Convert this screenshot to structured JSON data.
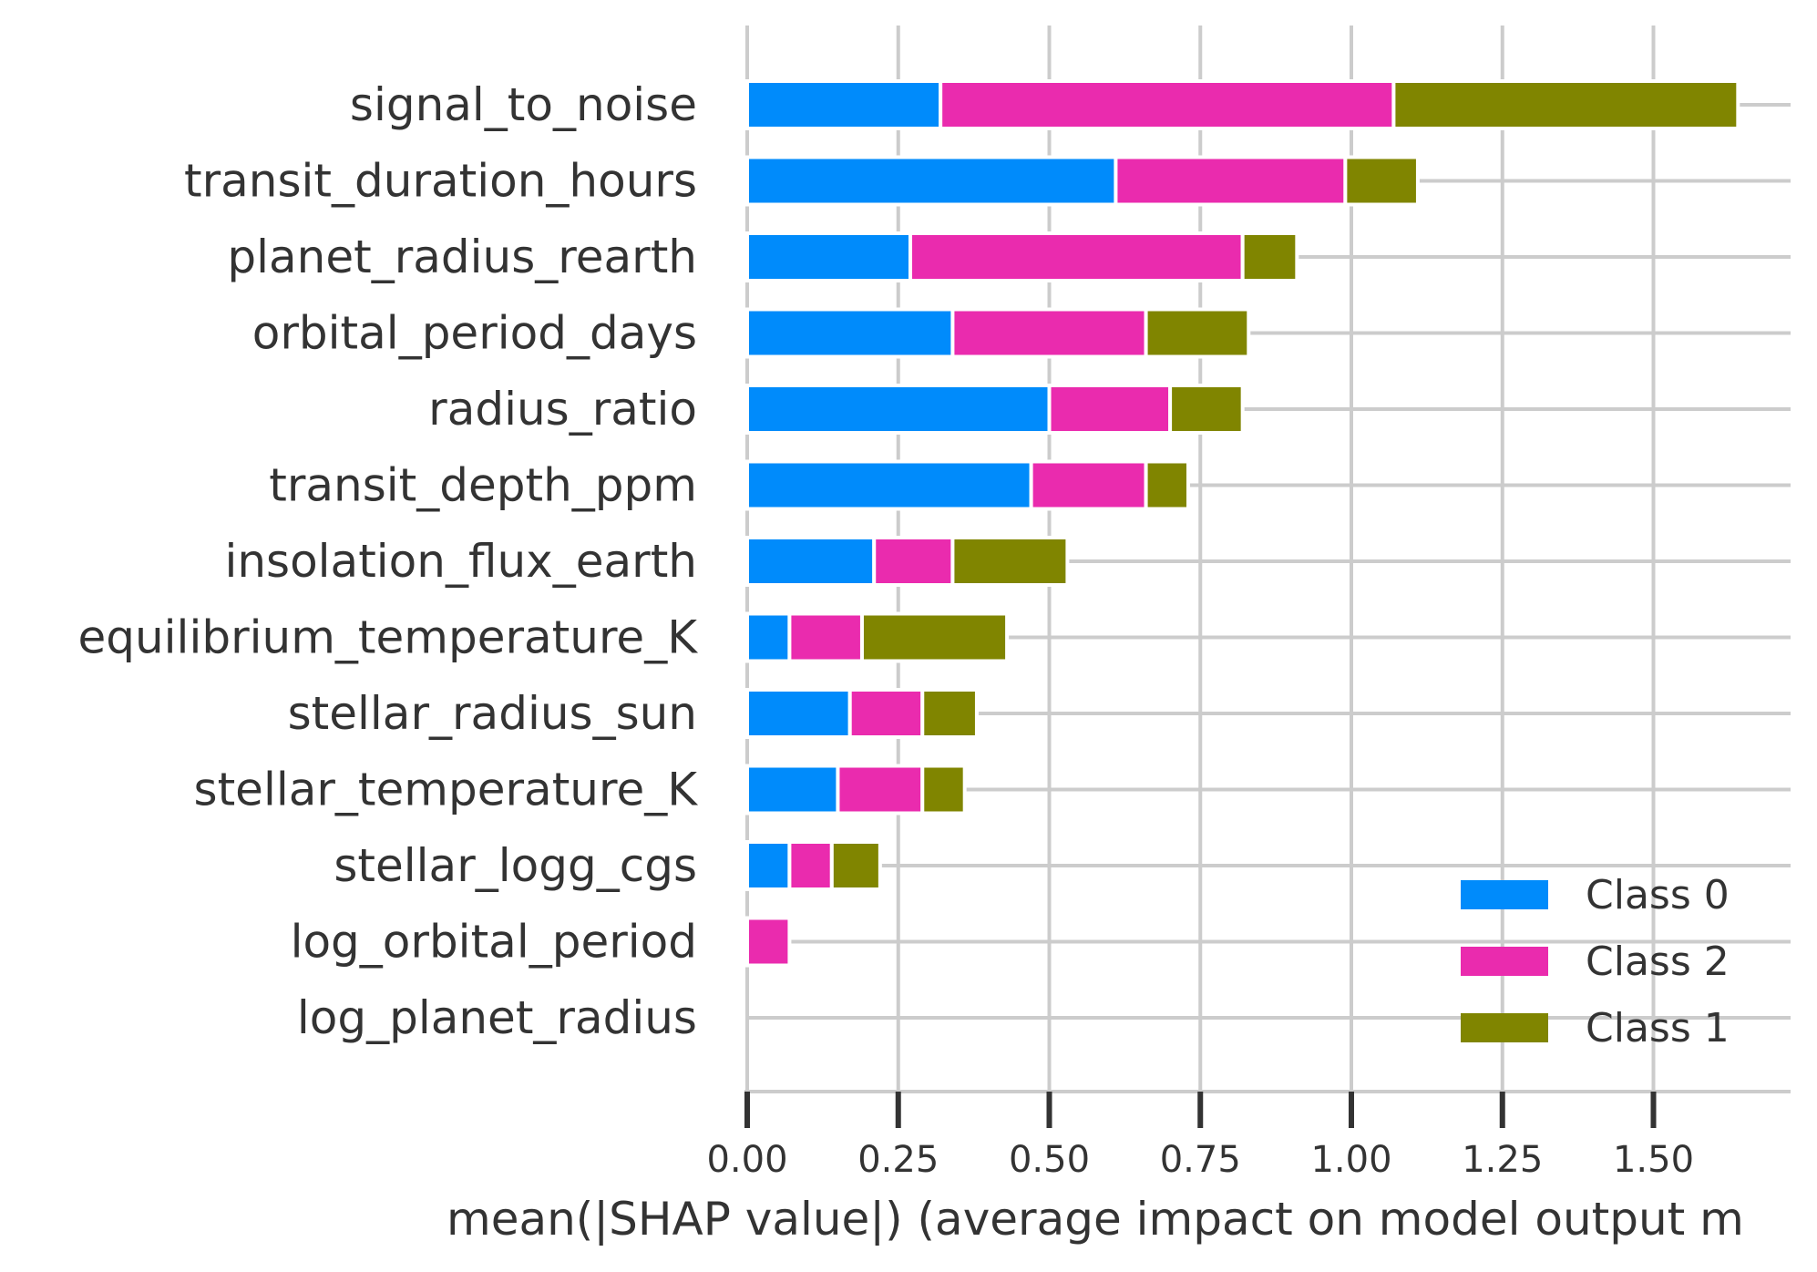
{
  "chart_data": {
    "type": "bar",
    "orientation": "horizontal",
    "stacked": true,
    "title": "",
    "xlabel": "mean(|SHAP value|) (average impact on model output m",
    "ylabel": "",
    "xlim": [
      0,
      1.73
    ],
    "xticks": [
      "0.00",
      "0.25",
      "0.50",
      "0.75",
      "1.00",
      "1.25",
      "1.50"
    ],
    "grid": true,
    "legend_position": "bottom-right",
    "categories": [
      "signal_to_noise",
      "transit_duration_hours",
      "planet_radius_rearth",
      "orbital_period_days",
      "radius_ratio",
      "transit_depth_ppm",
      "insolation_flux_earth",
      "equilibrium_temperature_K",
      "stellar_radius_sun",
      "stellar_temperature_K",
      "stellar_logg_cgs",
      "log_orbital_period",
      "log_planet_radius"
    ],
    "series": [
      {
        "name": "Class 0",
        "color": "#008bfb",
        "values": [
          0.32,
          0.61,
          0.27,
          0.34,
          0.5,
          0.47,
          0.21,
          0.07,
          0.17,
          0.15,
          0.07,
          0.0,
          0.0
        ]
      },
      {
        "name": "Class 2",
        "color": "#ea2bae",
        "values": [
          0.75,
          0.38,
          0.55,
          0.32,
          0.2,
          0.19,
          0.13,
          0.12,
          0.12,
          0.14,
          0.07,
          0.07,
          0.0
        ]
      },
      {
        "name": "Class 1",
        "color": "#808500",
        "values": [
          0.57,
          0.12,
          0.09,
          0.17,
          0.12,
          0.07,
          0.19,
          0.24,
          0.09,
          0.07,
          0.08,
          0.0,
          0.0
        ]
      }
    ]
  }
}
